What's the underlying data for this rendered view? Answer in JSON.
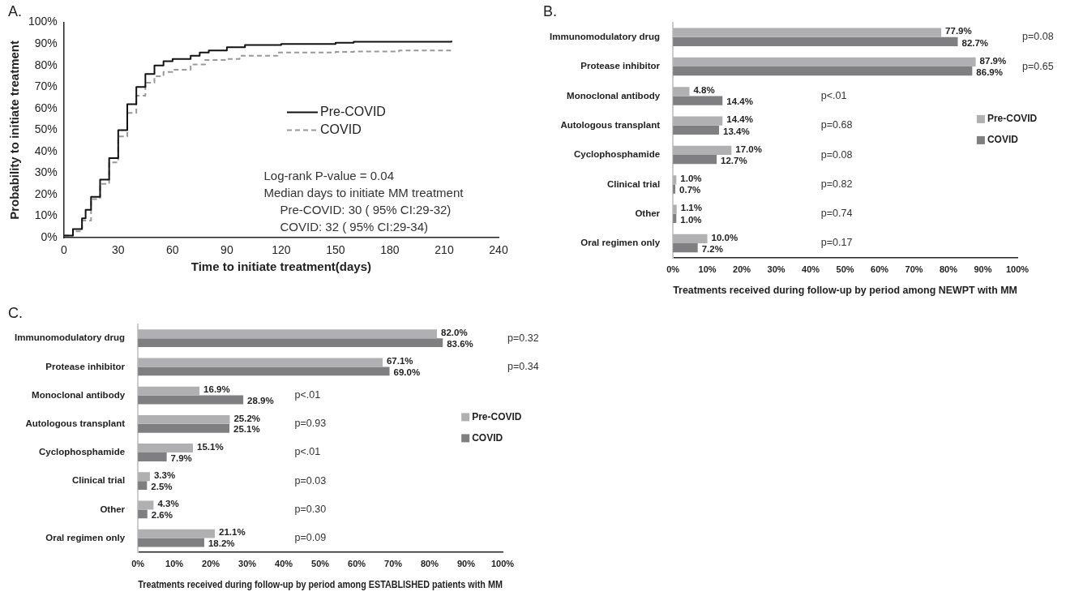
{
  "chart_data": [
    {
      "type": "step",
      "title": "A.",
      "xlabel": "Time to initiate treatment(days)",
      "ylabel": "Probability to initiate treatment",
      "xlim": [
        0,
        240
      ],
      "xticks": [
        0,
        30,
        60,
        90,
        120,
        150,
        180,
        210,
        240
      ],
      "ylim": [
        0,
        100
      ],
      "yticks": [
        {
          "value": 0,
          "label": "0%"
        },
        {
          "value": 10,
          "label": "10%"
        },
        {
          "value": 20,
          "label": "20%"
        },
        {
          "value": 30,
          "label": "30%"
        },
        {
          "value": 40,
          "label": "40%"
        },
        {
          "value": 50,
          "label": "50%"
        },
        {
          "value": 60,
          "label": "60%"
        },
        {
          "value": 70,
          "label": "70%"
        },
        {
          "value": 80,
          "label": "80%"
        },
        {
          "value": 90,
          "label": "90%"
        },
        {
          "value": 100,
          "label": "100%"
        }
      ],
      "grid": false,
      "legend": "right",
      "marker": "none",
      "series": [
        {
          "name": "Pre-COVID",
          "color": "#111111",
          "line_style": "solid",
          "x": [
            0,
            5,
            10,
            12,
            15,
            20,
            25,
            30,
            35,
            40,
            45,
            50,
            55,
            60,
            70,
            75,
            80,
            90,
            100,
            120,
            150,
            160,
            180,
            214
          ],
          "values": [
            1,
            4,
            9,
            13,
            19,
            27,
            37,
            50,
            62,
            70,
            76,
            80,
            82,
            83,
            84.5,
            86,
            87,
            88.5,
            89.5,
            90,
            90.5,
            91,
            91,
            91.5
          ]
        },
        {
          "name": "COVID",
          "color": "#999999",
          "line_style": "dashed",
          "x": [
            0,
            5,
            10,
            15,
            20,
            25,
            30,
            35,
            40,
            45,
            50,
            55,
            60,
            70,
            78,
            90,
            97,
            115,
            118,
            150,
            160,
            185,
            214
          ],
          "values": [
            1,
            3,
            8,
            18,
            25,
            35,
            47,
            58,
            66,
            72,
            75,
            77,
            78,
            80.5,
            82.5,
            83,
            84.5,
            84.5,
            86,
            86.3,
            86.5,
            87,
            87
          ]
        }
      ],
      "annotations": [
        "Log-rank P-value = 0.04",
        "Median days to initiate MM treatment",
        "Pre-COVID: 30 ( 95% CI:29-32)",
        "COVID: 32 ( 95% CI:29-34)"
      ]
    },
    {
      "type": "bar",
      "orientation": "horizontal",
      "title": "B.",
      "xlabel": "Treatments received during follow-up by period among NEWPT with MM",
      "categories": [
        "Immunomodulatory drug",
        "Protease inhibitor",
        "Monoclonal antibody",
        "Autologous transplant",
        "Cyclophosphamide",
        "Clinical trial",
        "Other",
        "Oral regimen only"
      ],
      "xlim": [
        0,
        100
      ],
      "xticks": [
        {
          "value": 0,
          "label": "0%"
        },
        {
          "value": 10,
          "label": "10%"
        },
        {
          "value": 20,
          "label": "20%"
        },
        {
          "value": 30,
          "label": "30%"
        },
        {
          "value": 40,
          "label": "40%"
        },
        {
          "value": 50,
          "label": "50%"
        },
        {
          "value": 60,
          "label": "60%"
        },
        {
          "value": 70,
          "label": "70%"
        },
        {
          "value": 80,
          "label": "80%"
        },
        {
          "value": 90,
          "label": "90%"
        },
        {
          "value": 100,
          "label": "100%"
        }
      ],
      "grid": false,
      "legend": "right",
      "series": [
        {
          "name": "Pre-COVID",
          "color": "#b0b0b2",
          "values": [
            77.9,
            87.9,
            4.8,
            14.4,
            17.0,
            1.0,
            1.1,
            10.0
          ],
          "value_labels": [
            "77.9%",
            "87.9%",
            "4.8%",
            "14.4%",
            "17.0%",
            "1.0%",
            "1.1%",
            "10.0%"
          ]
        },
        {
          "name": "COVID",
          "color": "#7f7f81",
          "values": [
            82.7,
            86.9,
            14.4,
            13.4,
            12.7,
            0.7,
            1.0,
            7.2
          ],
          "value_labels": [
            "82.7%",
            "86.9%",
            "14.4%",
            "13.4%",
            "12.7%",
            "0.7%",
            "1.0%",
            "7.2%"
          ]
        }
      ],
      "annotations": [
        "p=0.08",
        "p=0.65",
        "p<.01",
        "p=0.68",
        "p=0.08",
        "p=0.82",
        "p=0.74",
        "p=0.17"
      ]
    },
    {
      "type": "bar",
      "orientation": "horizontal",
      "title": "C.",
      "xlabel": "Treatments received during follow-up by period among ESTABLISHED patients with MM",
      "categories": [
        "Immunomodulatory drug",
        "Protease inhibitor",
        "Monoclonal antibody",
        "Autologous transplant",
        "Cyclophosphamide",
        "Clinical trial",
        "Other",
        "Oral regimen only"
      ],
      "xlim": [
        0,
        100
      ],
      "xticks": [
        {
          "value": 0,
          "label": "0%"
        },
        {
          "value": 10,
          "label": "10%"
        },
        {
          "value": 20,
          "label": "20%"
        },
        {
          "value": 30,
          "label": "30%"
        },
        {
          "value": 40,
          "label": "40%"
        },
        {
          "value": 50,
          "label": "50%"
        },
        {
          "value": 60,
          "label": "60%"
        },
        {
          "value": 70,
          "label": "70%"
        },
        {
          "value": 80,
          "label": "80%"
        },
        {
          "value": 90,
          "label": "90%"
        },
        {
          "value": 100,
          "label": "100%"
        }
      ],
      "grid": false,
      "legend": "right",
      "series": [
        {
          "name": "Pre-COVID",
          "color": "#b0b0b2",
          "values": [
            82.0,
            67.1,
            16.9,
            25.2,
            15.1,
            3.3,
            4.3,
            21.1
          ],
          "value_labels": [
            "82.0%",
            "67.1%",
            "16.9%",
            "25.2%",
            "15.1%",
            "3.3%",
            "4.3%",
            "21.1%"
          ]
        },
        {
          "name": "COVID",
          "color": "#7f7f81",
          "values": [
            83.6,
            69.0,
            28.9,
            25.1,
            7.9,
            2.5,
            2.6,
            18.2
          ],
          "value_labels": [
            "83.6%",
            "69.0%",
            "28.9%",
            "25.1%",
            "7.9%",
            "2.5%",
            "2.6%",
            "18.2%"
          ]
        }
      ],
      "annotations": [
        "p=0.32",
        "p=0.34",
        "p<.01",
        "p=0.93",
        "p<.01",
        "p=0.03",
        "p=0.30",
        "p=0.09"
      ]
    }
  ]
}
